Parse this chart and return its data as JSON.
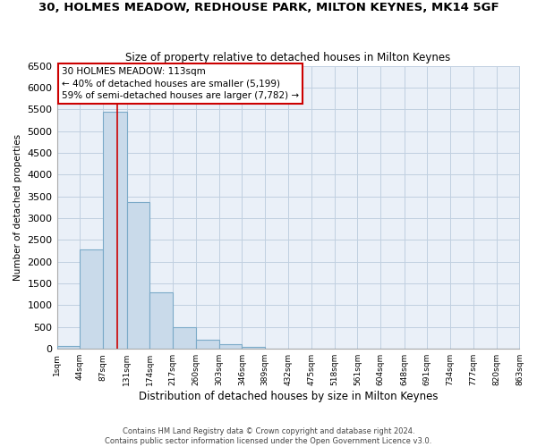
{
  "title": "30, HOLMES MEADOW, REDHOUSE PARK, MILTON KEYNES, MK14 5GF",
  "subtitle": "Size of property relative to detached houses in Milton Keynes",
  "xlabel": "Distribution of detached houses by size in Milton Keynes",
  "ylabel": "Number of detached properties",
  "bar_color": "#c9daea",
  "bar_edge_color": "#7baac8",
  "grid_color": "#c0cfe0",
  "background_color": "#ffffff",
  "plot_bg_color": "#eaf0f8",
  "bins": [
    1,
    44,
    87,
    131,
    174,
    217,
    260,
    303,
    346,
    389,
    432,
    475,
    518,
    561,
    604,
    648,
    691,
    734,
    777,
    820,
    863
  ],
  "bin_labels": [
    "1sqm",
    "44sqm",
    "87sqm",
    "131sqm",
    "174sqm",
    "217sqm",
    "260sqm",
    "303sqm",
    "346sqm",
    "389sqm",
    "432sqm",
    "475sqm",
    "518sqm",
    "561sqm",
    "604sqm",
    "648sqm",
    "691sqm",
    "734sqm",
    "777sqm",
    "820sqm",
    "863sqm"
  ],
  "counts": [
    75,
    2280,
    5450,
    3380,
    1300,
    490,
    210,
    100,
    50,
    0,
    0,
    0,
    0,
    0,
    0,
    0,
    0,
    0,
    0,
    0
  ],
  "ylim": [
    0,
    6500
  ],
  "yticks": [
    0,
    500,
    1000,
    1500,
    2000,
    2500,
    3000,
    3500,
    4000,
    4500,
    5000,
    5500,
    6000,
    6500
  ],
  "property_line_x": 113,
  "property_line_color": "#cc0000",
  "annotation_text_line1": "30 HOLMES MEADOW: 113sqm",
  "annotation_text_line2": "← 40% of detached houses are smaller (5,199)",
  "annotation_text_line3": "59% of semi-detached houses are larger (7,782) →",
  "footer_line1": "Contains HM Land Registry data © Crown copyright and database right 2024.",
  "footer_line2": "Contains public sector information licensed under the Open Government Licence v3.0."
}
